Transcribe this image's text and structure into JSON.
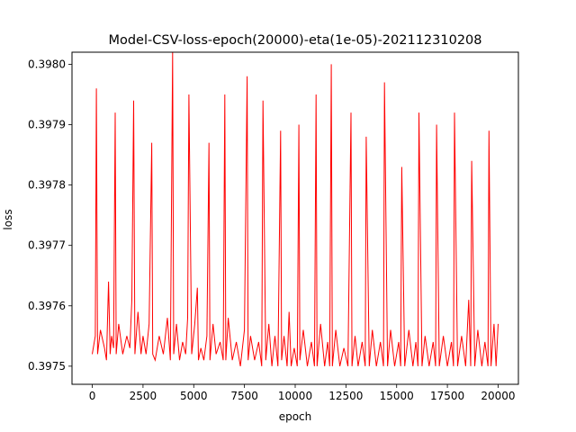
{
  "chart_data": {
    "type": "line",
    "title": "Model-CSV-loss-epoch(20000)-eta(1e-05)-202112310208",
    "xlabel": "epoch",
    "ylabel": "loss",
    "xlim": [
      -1000,
      21000
    ],
    "ylim": [
      0.39747,
      0.39802
    ],
    "xticks": [
      0,
      2500,
      5000,
      7500,
      10000,
      12500,
      15000,
      17500,
      20000
    ],
    "xtick_labels": [
      "0",
      "2500",
      "5000",
      "7500",
      "10000",
      "12500",
      "15000",
      "17500",
      "20000"
    ],
    "yticks": [
      0.3975,
      0.3976,
      0.3977,
      0.3978,
      0.3979,
      0.398
    ],
    "ytick_labels": [
      "0.3975",
      "0.3976",
      "0.3977",
      "0.3978",
      "0.3979",
      "0.3980"
    ],
    "grid": false,
    "series": [
      {
        "color": "#ff0000",
        "x": [
          0,
          150,
          200,
          260,
          400,
          600,
          700,
          800,
          880,
          950,
          1050,
          1130,
          1180,
          1300,
          1500,
          1700,
          1850,
          1950,
          2040,
          2100,
          2250,
          2400,
          2500,
          2650,
          2800,
          2930,
          2980,
          3100,
          3300,
          3500,
          3700,
          3850,
          3960,
          4010,
          4150,
          4300,
          4450,
          4600,
          4700,
          4760,
          4900,
          5050,
          5180,
          5230,
          5350,
          5500,
          5650,
          5750,
          5800,
          5950,
          6100,
          6300,
          6450,
          6530,
          6580,
          6700,
          6900,
          7100,
          7300,
          7500,
          7630,
          7680,
          7800,
          8000,
          8200,
          8350,
          8410,
          8550,
          8700,
          8850,
          9000,
          9150,
          9280,
          9330,
          9450,
          9600,
          9700,
          9800,
          9950,
          10100,
          10180,
          10230,
          10400,
          10600,
          10800,
          10950,
          11030,
          11080,
          11250,
          11450,
          11600,
          11700,
          11780,
          11830,
          12000,
          12200,
          12400,
          12600,
          12750,
          12800,
          12950,
          13100,
          13300,
          13450,
          13500,
          13650,
          13800,
          14000,
          14200,
          14350,
          14400,
          14550,
          14700,
          14900,
          15100,
          15200,
          15250,
          15400,
          15600,
          15800,
          15950,
          16050,
          16100,
          16250,
          16400,
          16600,
          16800,
          16920,
          16970,
          17100,
          17300,
          17500,
          17700,
          17800,
          17850,
          18000,
          18200,
          18400,
          18550,
          18650,
          18700,
          18850,
          19000,
          19200,
          19350,
          19500,
          19550,
          19650,
          19800,
          19900,
          20000
        ],
        "y": [
          0.39752,
          0.39755,
          0.39796,
          0.39752,
          0.39756,
          0.39753,
          0.39751,
          0.39764,
          0.39752,
          0.39755,
          0.39753,
          0.39792,
          0.39752,
          0.39757,
          0.39752,
          0.39755,
          0.39753,
          0.39761,
          0.39794,
          0.39752,
          0.39759,
          0.39752,
          0.39755,
          0.39752,
          0.39757,
          0.39787,
          0.39752,
          0.39751,
          0.39755,
          0.39752,
          0.39758,
          0.39751,
          0.39802,
          0.39752,
          0.39757,
          0.39751,
          0.39754,
          0.39752,
          0.39758,
          0.39795,
          0.39752,
          0.39757,
          0.39763,
          0.39751,
          0.39753,
          0.39751,
          0.39755,
          0.39787,
          0.39751,
          0.39757,
          0.39752,
          0.39754,
          0.39751,
          0.39795,
          0.39751,
          0.39758,
          0.39751,
          0.39754,
          0.3975,
          0.39756,
          0.39798,
          0.39751,
          0.39755,
          0.39751,
          0.39754,
          0.3975,
          0.39794,
          0.39751,
          0.39757,
          0.3975,
          0.39755,
          0.3975,
          0.39789,
          0.39751,
          0.39755,
          0.3975,
          0.39759,
          0.3975,
          0.39753,
          0.3975,
          0.3979,
          0.39751,
          0.39756,
          0.3975,
          0.39754,
          0.3975,
          0.39795,
          0.3975,
          0.39757,
          0.3975,
          0.39754,
          0.3975,
          0.398,
          0.3975,
          0.39756,
          0.3975,
          0.39753,
          0.3975,
          0.39792,
          0.3975,
          0.39755,
          0.3975,
          0.39754,
          0.3975,
          0.39788,
          0.3975,
          0.39756,
          0.3975,
          0.39754,
          0.3975,
          0.39797,
          0.3975,
          0.39756,
          0.3975,
          0.39754,
          0.3975,
          0.39783,
          0.3975,
          0.39756,
          0.3975,
          0.39754,
          0.3975,
          0.39792,
          0.3975,
          0.39755,
          0.3975,
          0.39754,
          0.3975,
          0.3979,
          0.3975,
          0.39755,
          0.3975,
          0.39754,
          0.3975,
          0.39792,
          0.3975,
          0.39755,
          0.3975,
          0.39761,
          0.3975,
          0.39784,
          0.3975,
          0.39756,
          0.3975,
          0.39754,
          0.3975,
          0.39789,
          0.3975,
          0.39757,
          0.3975,
          0.39757
        ]
      }
    ]
  }
}
